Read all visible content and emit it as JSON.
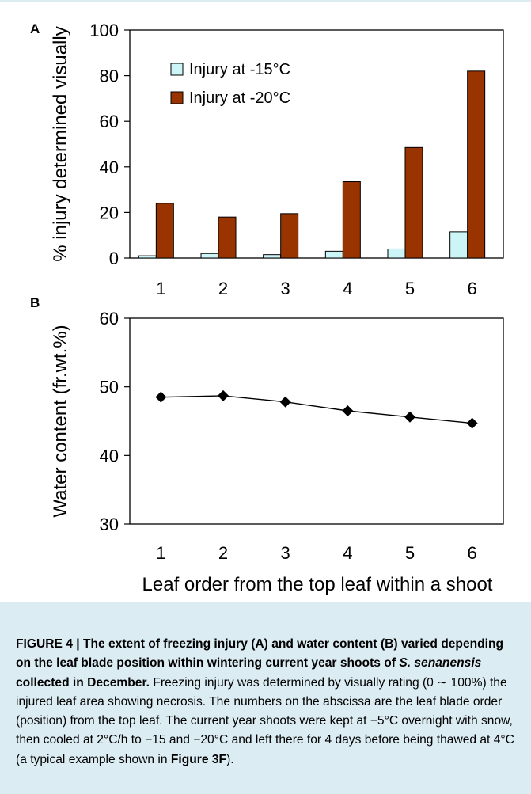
{
  "chart_data": [
    {
      "panel": "A",
      "type": "bar",
      "categories": [
        "1",
        "2",
        "3",
        "4",
        "5",
        "6"
      ],
      "series": [
        {
          "name": "Injury at -15°C",
          "color": "#ccf5f8",
          "values": [
            1,
            2,
            1.5,
            3,
            4,
            11.5
          ]
        },
        {
          "name": "Injury at -20°C",
          "color": "#993300",
          "values": [
            24,
            18,
            19.5,
            33.5,
            48.5,
            82
          ]
        }
      ],
      "ylabel": "% injury determined visually",
      "xlabel": "",
      "ylim": [
        0,
        100
      ],
      "yticks": [
        0,
        20,
        40,
        60,
        80,
        100
      ],
      "legend": "top-left",
      "grid": false
    },
    {
      "panel": "B",
      "type": "line",
      "x": [
        "1",
        "2",
        "3",
        "4",
        "5",
        "6"
      ],
      "series": [
        {
          "values": [
            48.5,
            48.7,
            47.8,
            46.5,
            45.6,
            44.7
          ],
          "marker": "diamond",
          "color": "#000000"
        }
      ],
      "ylabel": "Water content (fr.wt.%)",
      "xlabel": "Leaf order from the top leaf within a shoot",
      "ylim": [
        30,
        60
      ],
      "yticks": [
        30,
        40,
        50,
        60
      ],
      "grid": false
    }
  ],
  "caption": {
    "title": "FIGURE 4 | The extent of freezing injury (A) and water content (B) varied depending on the leaf blade position within wintering current year shoots of ",
    "species": "S. senanensis",
    "title_end": " collected in December.",
    "body": " Freezing injury was determined by visually rating (0 ∼ 100%) the injured leaf area showing necrosis. The numbers on the abscissa are the leaf blade order (position) from the top leaf. The current year shoots were kept at −5°C overnight with snow, then cooled at 2°C/h to −15 and −20°C and left there for 4 days before being thawed at 4°C (a typical example shown in ",
    "ref": "Figure 3F",
    "body_end": ")."
  }
}
